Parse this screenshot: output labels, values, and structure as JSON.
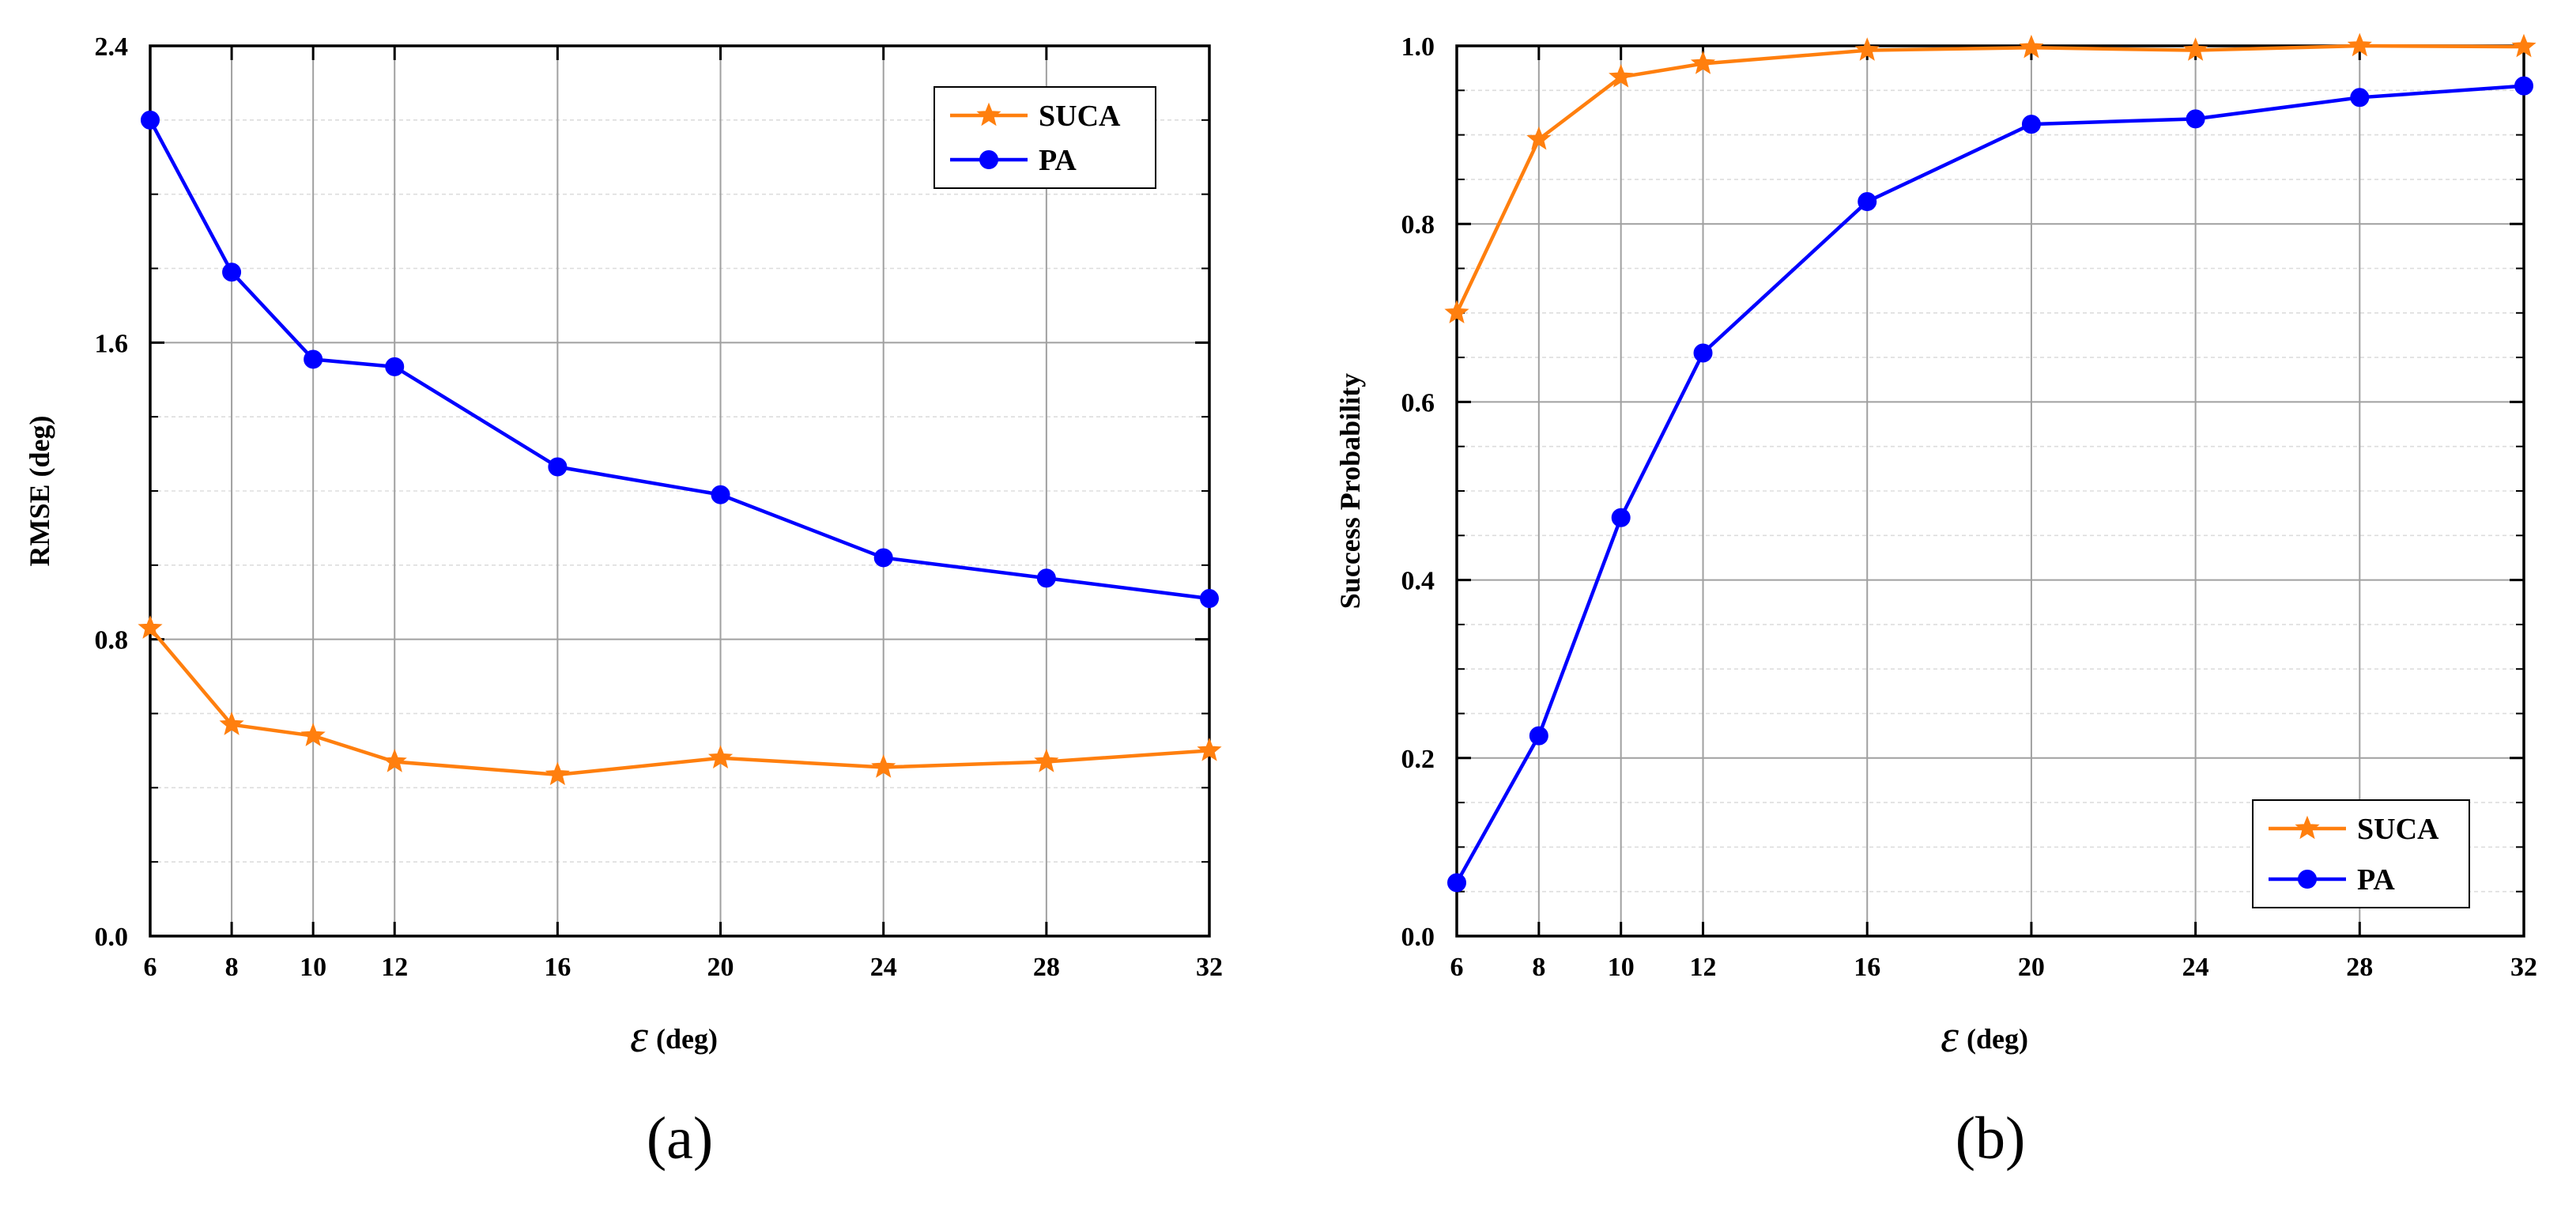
{
  "colors": {
    "suca": "#ff7f0e",
    "pa": "#0000ff",
    "grid_major": "#a0a0a0",
    "grid_minor": "#dddddd",
    "axis": "#000000"
  },
  "chart_data": [
    {
      "type": "line",
      "panel_label": "(a)",
      "title": "",
      "xlabel_symbol": "ε",
      "xlabel_unit": "(deg)",
      "ylabel": "RMSE (deg)",
      "x": [
        6,
        8,
        10,
        12,
        16,
        20,
        24,
        28,
        32
      ],
      "x_tick_labels": [
        "6",
        "8",
        "10",
        "12",
        "16",
        "20",
        "24",
        "28",
        "32"
      ],
      "ylim": [
        0,
        2.4
      ],
      "y_major_ticks": [
        0,
        0.8,
        1.6,
        2.4
      ],
      "y_tick_labels": [
        "0.0",
        "0.8",
        "1.6",
        "2.4"
      ],
      "y_minor_step": 0.2,
      "legend_position": "top-right",
      "series": [
        {
          "name": "SUCA",
          "marker": "star",
          "values": [
            0.83,
            0.57,
            0.54,
            0.47,
            0.435,
            0.48,
            0.455,
            0.47,
            0.5
          ]
        },
        {
          "name": "PA",
          "marker": "circle",
          "values": [
            2.2,
            1.79,
            1.555,
            1.535,
            1.265,
            1.19,
            1.02,
            0.965,
            0.91
          ]
        }
      ]
    },
    {
      "type": "line",
      "panel_label": "(b)",
      "title": "",
      "xlabel_symbol": "ε",
      "xlabel_unit": "(deg)",
      "ylabel": "Success Probability",
      "x": [
        6,
        8,
        10,
        12,
        16,
        20,
        24,
        28,
        32
      ],
      "x_tick_labels": [
        "6",
        "8",
        "10",
        "12",
        "16",
        "20",
        "24",
        "28",
        "32"
      ],
      "ylim": [
        0,
        1.0
      ],
      "y_major_ticks": [
        0,
        0.2,
        0.4,
        0.6,
        0.8,
        1.0
      ],
      "y_tick_labels": [
        "0.0",
        "0.2",
        "0.4",
        "0.6",
        "0.8",
        "1.0"
      ],
      "y_minor_step": 0.05,
      "legend_position": "bottom-right",
      "series": [
        {
          "name": "SUCA",
          "marker": "star",
          "values": [
            0.7,
            0.895,
            0.965,
            0.98,
            0.995,
            0.998,
            0.995,
            1.0,
            0.999
          ]
        },
        {
          "name": "PA",
          "marker": "circle",
          "values": [
            0.06,
            0.225,
            0.47,
            0.655,
            0.825,
            0.912,
            0.918,
            0.942,
            0.955
          ]
        }
      ]
    }
  ]
}
